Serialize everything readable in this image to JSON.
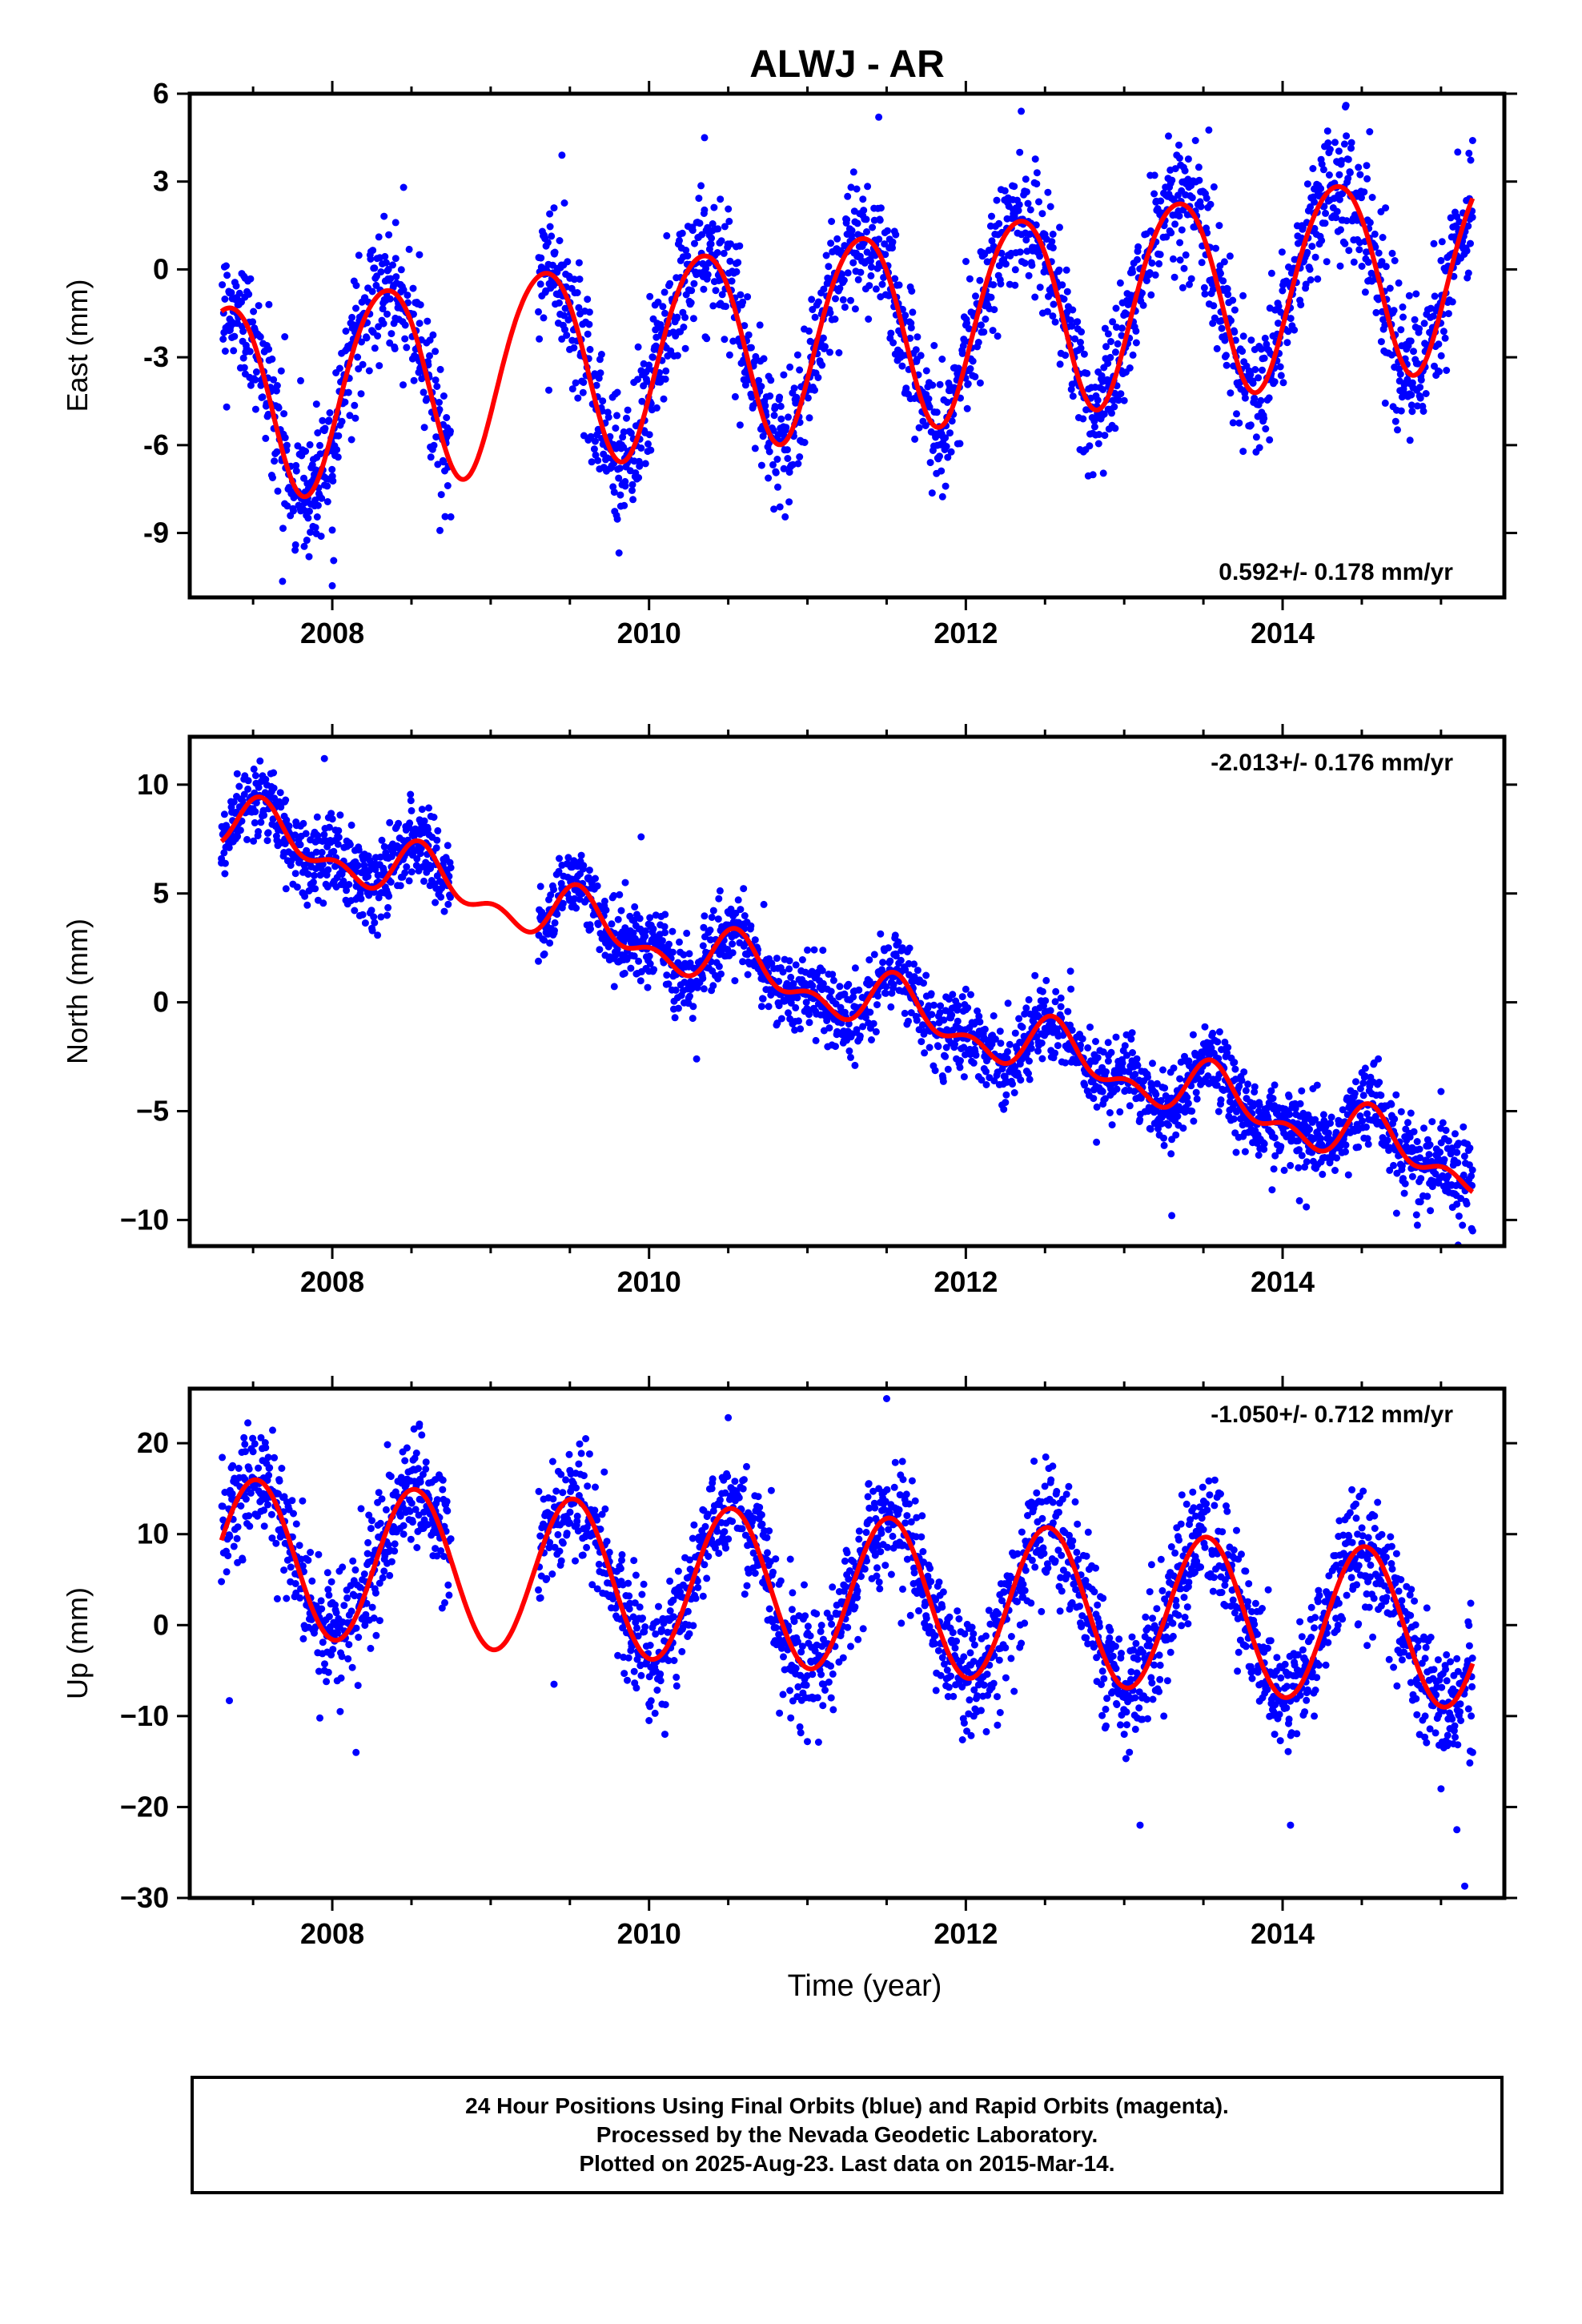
{
  "title": "ALWJ - AR",
  "footer": {
    "line1": "24 Hour Positions Using Final Orbits (blue) and Rapid Orbits (magenta).",
    "line2": "Processed by the Nevada Geodetic Laboratory.",
    "line3": "Plotted on 2025-Aug-23. Last data on 2015-Mar-14."
  },
  "colors": {
    "points": "#0000ff",
    "model": "#ff0000",
    "frame": "#000000"
  },
  "chart_data": [
    {
      "type": "scatter",
      "ylabel": "East (mm)",
      "xlabel": "",
      "xlim": [
        2007.1,
        2015.4
      ],
      "ylim": [
        -11.2,
        6
      ],
      "yticks": [
        -9,
        -6,
        -3,
        0,
        3,
        6
      ],
      "ytick_labels": [
        "-9",
        "-6",
        "-3",
        "0",
        "3",
        "6"
      ],
      "xticks": [
        2008,
        2010,
        2012,
        2014
      ],
      "xtick_labels": [
        "2008",
        "2010",
        "2012",
        "2014"
      ],
      "rate_label": "0.592+/- 0.178 mm/yr",
      "rate_position": "bottom-right",
      "data_gap": [
        2008.75,
        2009.3
      ],
      "model": {
        "start": 2007.3,
        "end": 2015.2,
        "offset": -2.1,
        "rate": 0.592,
        "t0": 2011.25,
        "amp_cos": -1.7,
        "amp_sin": 2.9,
        "semi_cos": 0.2,
        "semi_sin": 0.2
      },
      "scatter_sigma": 1.1,
      "points": [
        [
          2007.35,
          -0.8
        ],
        [
          2007.45,
          -0.3
        ],
        [
          2007.6,
          -1.2
        ],
        [
          2007.7,
          -2.3
        ],
        [
          2007.8,
          -3.8
        ],
        [
          2007.9,
          -4.6
        ],
        [
          2007.95,
          -5.5
        ],
        [
          2008.0,
          -6.2
        ],
        [
          2008.0,
          -8.9
        ],
        [
          2008.0,
          -10.8
        ],
        [
          2008.1,
          -3.2
        ],
        [
          2008.2,
          -1.5
        ],
        [
          2008.3,
          0.4
        ],
        [
          2008.4,
          1.6
        ],
        [
          2008.45,
          2.8
        ],
        [
          2008.55,
          0.5
        ],
        [
          2008.65,
          -2.8
        ],
        [
          2008.7,
          -5.3
        ],
        [
          2009.35,
          0.8
        ],
        [
          2009.4,
          2.1
        ],
        [
          2009.45,
          3.9
        ],
        [
          2009.5,
          -0.3
        ],
        [
          2009.6,
          -1.8
        ],
        [
          2009.7,
          -2.9
        ],
        [
          2009.8,
          -4.2
        ],
        [
          2009.85,
          -7.4
        ],
        [
          2009.95,
          -6.1
        ],
        [
          2010.0,
          -3.4
        ],
        [
          2010.1,
          -1.5
        ],
        [
          2010.2,
          0.3
        ],
        [
          2010.3,
          1.6
        ],
        [
          2010.35,
          4.5
        ],
        [
          2010.45,
          2.4
        ],
        [
          2010.55,
          0.2
        ],
        [
          2010.7,
          -1.9
        ],
        [
          2010.85,
          -3.6
        ],
        [
          2010.95,
          -6.4
        ],
        [
          2011.1,
          -1.7
        ],
        [
          2011.25,
          0.6
        ],
        [
          2011.35,
          2.4
        ],
        [
          2011.45,
          5.2
        ],
        [
          2011.55,
          1.3
        ],
        [
          2011.65,
          -0.6
        ],
        [
          2011.8,
          -2.6
        ],
        [
          2011.9,
          -4.0
        ],
        [
          2012.0,
          -1.9
        ],
        [
          2012.15,
          -0.5
        ],
        [
          2012.3,
          1.9
        ],
        [
          2012.35,
          5.4
        ],
        [
          2012.45,
          3.3
        ],
        [
          2012.55,
          1.2
        ],
        [
          2012.7,
          -1.8
        ],
        [
          2012.8,
          -5.6
        ],
        [
          2012.9,
          -2.2
        ],
        [
          2013.05,
          0.0
        ],
        [
          2013.2,
          2.3
        ],
        [
          2013.35,
          3.8
        ],
        [
          2013.45,
          4.4
        ],
        [
          2013.6,
          1.5
        ],
        [
          2013.75,
          -0.9
        ],
        [
          2013.9,
          -2.7
        ],
        [
          2014.05,
          -0.6
        ],
        [
          2014.2,
          2.3
        ],
        [
          2014.3,
          4.1
        ],
        [
          2014.4,
          5.6
        ],
        [
          2014.55,
          4.7
        ],
        [
          2014.65,
          2.1
        ],
        [
          2014.8,
          -0.9
        ],
        [
          2014.9,
          -2.8
        ],
        [
          2015.0,
          0.3
        ],
        [
          2015.1,
          1.8
        ],
        [
          2015.2,
          4.4
        ]
      ]
    },
    {
      "type": "scatter",
      "ylabel": "North (mm)",
      "xlabel": "",
      "xlim": [
        2007.1,
        2015.4
      ],
      "ylim": [
        -11.2,
        12.2
      ],
      "yticks": [
        -10,
        -5,
        0,
        5,
        10
      ],
      "ytick_labels": [
        "−10",
        "−5",
        "0",
        "5",
        "10"
      ],
      "xticks": [
        2008,
        2010,
        2012,
        2014
      ],
      "xtick_labels": [
        "2008",
        "2010",
        "2012",
        "2014"
      ],
      "rate_label": "-2.013+/- 0.176 mm/yr",
      "rate_position": "top-right",
      "data_gap": [
        2008.75,
        2009.3
      ],
      "model": {
        "start": 2007.3,
        "end": 2015.2,
        "offset": 0.3,
        "rate": -2.013,
        "t0": 2011.25,
        "amp_cos": -0.9,
        "amp_sin": -0.5,
        "semi_cos": 0.6,
        "semi_sin": 0.3
      },
      "scatter_sigma": 0.9,
      "points": [
        [
          2007.3,
          6.4
        ],
        [
          2007.4,
          10.5
        ],
        [
          2007.5,
          8.9
        ],
        [
          2007.6,
          9.5
        ],
        [
          2007.7,
          7.5
        ],
        [
          2007.8,
          8.1
        ],
        [
          2007.9,
          6.9
        ],
        [
          2007.95,
          11.2
        ],
        [
          2008.05,
          8.6
        ],
        [
          2008.15,
          6.0
        ],
        [
          2008.25,
          3.4
        ],
        [
          2008.35,
          5.0
        ],
        [
          2008.5,
          8.8
        ],
        [
          2008.6,
          6.8
        ],
        [
          2008.7,
          5.5
        ],
        [
          2009.35,
          3.2
        ],
        [
          2009.45,
          6.3
        ],
        [
          2009.55,
          5.8
        ],
        [
          2009.7,
          3.9
        ],
        [
          2009.85,
          5.5
        ],
        [
          2009.95,
          7.6
        ],
        [
          2010.1,
          3.2
        ],
        [
          2010.25,
          0.2
        ],
        [
          2010.3,
          -2.6
        ],
        [
          2010.45,
          2.6
        ],
        [
          2010.6,
          3.6
        ],
        [
          2010.75,
          1.0
        ],
        [
          2010.85,
          0.1
        ],
        [
          2011.0,
          2.4
        ],
        [
          2011.15,
          0.5
        ],
        [
          2011.25,
          -1.6
        ],
        [
          2011.3,
          -2.9
        ],
        [
          2011.45,
          1.4
        ],
        [
          2011.6,
          2.5
        ],
        [
          2011.75,
          -0.4
        ],
        [
          2011.85,
          -1.5
        ],
        [
          2012.0,
          0.6
        ],
        [
          2012.15,
          -2.5
        ],
        [
          2012.25,
          -4.6
        ],
        [
          2012.4,
          -2.7
        ],
        [
          2012.5,
          -1.2
        ],
        [
          2012.6,
          -0.2
        ],
        [
          2012.75,
          -3.8
        ],
        [
          2012.9,
          -2.7
        ],
        [
          2013.05,
          -1.4
        ],
        [
          2013.2,
          -4.9
        ],
        [
          2013.3,
          -6.3
        ],
        [
          2013.3,
          -9.8
        ],
        [
          2013.45,
          -3.0
        ],
        [
          2013.55,
          -2.1
        ],
        [
          2013.7,
          -6.0
        ],
        [
          2013.85,
          -5.0
        ],
        [
          2013.95,
          -3.8
        ],
        [
          2014.1,
          -7.6
        ],
        [
          2014.15,
          -9.4
        ],
        [
          2014.3,
          -6.4
        ],
        [
          2014.45,
          -4.8
        ],
        [
          2014.55,
          -3.7
        ],
        [
          2014.7,
          -7.5
        ],
        [
          2014.85,
          -6.4
        ],
        [
          2015.0,
          -4.1
        ],
        [
          2015.1,
          -6.9
        ],
        [
          2015.2,
          -10.5
        ]
      ]
    },
    {
      "type": "scatter",
      "ylabel": "Up (mm)",
      "xlabel": "Time (year)",
      "xlim": [
        2007.1,
        2015.4
      ],
      "ylim": [
        -30,
        26
      ],
      "yticks": [
        -30,
        -20,
        -10,
        0,
        10,
        20
      ],
      "ytick_labels": [
        "−30",
        "−20",
        "−10",
        "0",
        "10",
        "20"
      ],
      "xticks": [
        2008,
        2010,
        2012,
        2014
      ],
      "xtick_labels": [
        "2008",
        "2010",
        "2012",
        "2014"
      ],
      "rate_label": "-1.050+/- 0.712 mm/yr",
      "rate_position": "top-right",
      "data_gap": [
        2008.75,
        2009.3
      ],
      "model": {
        "start": 2007.3,
        "end": 2015.2,
        "offset": 3.5,
        "rate": -1.05,
        "t0": 2011.25,
        "amp_cos": -8.5,
        "amp_sin": -1.0,
        "semi_cos": 0.0,
        "semi_sin": 0.0
      },
      "scatter_sigma": 3.2,
      "points": [
        [
          2007.35,
          -8.3
        ],
        [
          2007.45,
          16.0
        ],
        [
          2007.55,
          20.6
        ],
        [
          2007.65,
          14.5
        ],
        [
          2007.8,
          4.0
        ],
        [
          2007.95,
          -5.0
        ],
        [
          2008.05,
          -9.5
        ],
        [
          2008.15,
          -14.0
        ],
        [
          2008.3,
          0.5
        ],
        [
          2008.45,
          10.0
        ],
        [
          2008.55,
          22.1
        ],
        [
          2008.65,
          16.0
        ],
        [
          2009.35,
          5.0
        ],
        [
          2009.4,
          -6.5
        ],
        [
          2009.5,
          17.0
        ],
        [
          2009.6,
          20.5
        ],
        [
          2009.75,
          8.0
        ],
        [
          2009.9,
          -2.0
        ],
        [
          2010.0,
          -10.5
        ],
        [
          2010.1,
          -12.0
        ],
        [
          2010.25,
          0.0
        ],
        [
          2010.4,
          9.0
        ],
        [
          2010.5,
          22.8
        ],
        [
          2010.6,
          16.0
        ],
        [
          2010.75,
          4.0
        ],
        [
          2010.9,
          -5.0
        ],
        [
          2011.0,
          -12.8
        ],
        [
          2011.15,
          -8.0
        ],
        [
          2011.3,
          2.0
        ],
        [
          2011.45,
          15.0
        ],
        [
          2011.5,
          24.9
        ],
        [
          2011.6,
          18.0
        ],
        [
          2011.75,
          5.0
        ],
        [
          2011.9,
          -4.0
        ],
        [
          2012.05,
          -10.0
        ],
        [
          2012.2,
          -11.0
        ],
        [
          2012.35,
          -2.0
        ],
        [
          2012.5,
          6.0
        ],
        [
          2012.55,
          13.5
        ],
        [
          2012.7,
          8.0
        ],
        [
          2012.85,
          -3.0
        ],
        [
          2013.0,
          -12.0
        ],
        [
          2013.1,
          -22.0
        ],
        [
          2013.25,
          -10.0
        ],
        [
          2013.4,
          2.0
        ],
        [
          2013.5,
          10.5
        ],
        [
          2013.65,
          12.5
        ],
        [
          2013.8,
          0.0
        ],
        [
          2013.95,
          -12.0
        ],
        [
          2014.05,
          -22.0
        ],
        [
          2014.2,
          -10.0
        ],
        [
          2014.35,
          0.0
        ],
        [
          2014.5,
          9.0
        ],
        [
          2014.6,
          13.5
        ],
        [
          2014.75,
          2.0
        ],
        [
          2014.9,
          -10.0
        ],
        [
          2015.0,
          -18.0
        ],
        [
          2015.1,
          -22.5
        ],
        [
          2015.15,
          -28.7
        ],
        [
          2015.2,
          -14.0
        ]
      ]
    }
  ]
}
